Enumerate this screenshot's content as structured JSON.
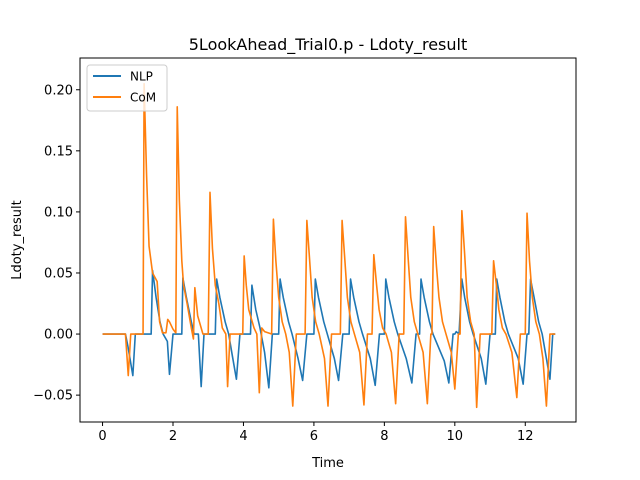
{
  "chart_data": {
    "type": "line",
    "title": "5LookAhead_Trial0.p - Ldoty_result",
    "xlabel": "Time",
    "ylabel": "Ldoty_result",
    "xlim": [
      -0.64,
      13.44
    ],
    "ylim": [
      -0.072,
      0.226
    ],
    "xticks": [
      0,
      2,
      4,
      6,
      8,
      10,
      12
    ],
    "yticks": [
      -0.05,
      0.0,
      0.05,
      0.1,
      0.15,
      0.2
    ],
    "ytick_labels": [
      "−0.05",
      "0.00",
      "0.05",
      "0.10",
      "0.15",
      "0.20"
    ],
    "grid": false,
    "legend_position": "top-left",
    "series": [
      {
        "name": "NLP",
        "color": "#1f77b4",
        "points": [
          [
            0,
            0
          ],
          [
            0.65,
            0
          ],
          [
            0.72,
            -0.01
          ],
          [
            0.86,
            -0.034
          ],
          [
            0.93,
            0
          ],
          [
            1.38,
            0
          ],
          [
            1.42,
            0.052
          ],
          [
            1.52,
            0.03
          ],
          [
            1.63,
            0.01
          ],
          [
            1.72,
            0
          ],
          [
            1.84,
            -0.006
          ],
          [
            1.9,
            -0.033
          ],
          [
            2.0,
            0
          ],
          [
            2.25,
            0
          ],
          [
            2.28,
            0.046
          ],
          [
            2.38,
            0.03
          ],
          [
            2.52,
            0.01
          ],
          [
            2.6,
            0
          ],
          [
            2.72,
            0
          ],
          [
            2.8,
            -0.043
          ],
          [
            2.88,
            0
          ],
          [
            3.2,
            0
          ],
          [
            3.24,
            0.045
          ],
          [
            3.33,
            0.03
          ],
          [
            3.48,
            0.01
          ],
          [
            3.58,
            0
          ],
          [
            3.68,
            -0.017
          ],
          [
            3.8,
            -0.037
          ],
          [
            3.9,
            0
          ],
          [
            4.2,
            0
          ],
          [
            4.24,
            0.04
          ],
          [
            4.35,
            0.02
          ],
          [
            4.47,
            0.005
          ],
          [
            4.6,
            -0.015
          ],
          [
            4.72,
            -0.044
          ],
          [
            4.82,
            0
          ],
          [
            5.0,
            0
          ],
          [
            5.04,
            0.045
          ],
          [
            5.13,
            0.03
          ],
          [
            5.28,
            0.01
          ],
          [
            5.38,
            0
          ],
          [
            5.55,
            -0.02
          ],
          [
            5.68,
            -0.038
          ],
          [
            5.8,
            0
          ],
          [
            6.0,
            0
          ],
          [
            6.04,
            0.045
          ],
          [
            6.13,
            0.03
          ],
          [
            6.28,
            0.01
          ],
          [
            6.38,
            0
          ],
          [
            6.58,
            -0.02
          ],
          [
            6.7,
            -0.038
          ],
          [
            6.82,
            0
          ],
          [
            7.0,
            0
          ],
          [
            7.04,
            0.045
          ],
          [
            7.13,
            0.03
          ],
          [
            7.28,
            0.01
          ],
          [
            7.38,
            0
          ],
          [
            7.6,
            -0.02
          ],
          [
            7.74,
            -0.042
          ],
          [
            7.86,
            0
          ],
          [
            8.0,
            0
          ],
          [
            8.04,
            0.045
          ],
          [
            8.13,
            0.03
          ],
          [
            8.28,
            0.01
          ],
          [
            8.38,
            0
          ],
          [
            8.62,
            -0.02
          ],
          [
            8.78,
            -0.04
          ],
          [
            8.9,
            0
          ],
          [
            9.0,
            0
          ],
          [
            9.04,
            0.045
          ],
          [
            9.13,
            0.03
          ],
          [
            9.28,
            0.01
          ],
          [
            9.38,
            0
          ],
          [
            9.7,
            -0.022
          ],
          [
            9.83,
            -0.04
          ],
          [
            9.95,
            0
          ],
          [
            10.0,
            0
          ],
          [
            10.04,
            0.002
          ],
          [
            10.12,
            0
          ],
          [
            10.2,
            0.045
          ],
          [
            10.28,
            0.03
          ],
          [
            10.42,
            0.01
          ],
          [
            10.52,
            0
          ],
          [
            10.75,
            -0.02
          ],
          [
            10.88,
            -0.041
          ],
          [
            11.0,
            0
          ],
          [
            11.15,
            0
          ],
          [
            11.19,
            0.045
          ],
          [
            11.28,
            0.03
          ],
          [
            11.42,
            0.01
          ],
          [
            11.52,
            0
          ],
          [
            11.8,
            -0.02
          ],
          [
            11.94,
            -0.041
          ],
          [
            12.05,
            0
          ],
          [
            12.1,
            0
          ],
          [
            12.15,
            0.045
          ],
          [
            12.25,
            0.03
          ],
          [
            12.38,
            0.01
          ],
          [
            12.48,
            0
          ],
          [
            12.6,
            -0.02
          ],
          [
            12.7,
            -0.037
          ],
          [
            12.78,
            0
          ],
          [
            12.85,
            0
          ]
        ]
      },
      {
        "name": "CoM",
        "color": "#ff7f0e",
        "points": [
          [
            0,
            0
          ],
          [
            0.65,
            0
          ],
          [
            0.73,
            -0.034
          ],
          [
            0.8,
            0
          ],
          [
            1.15,
            0
          ],
          [
            1.18,
            0.205
          ],
          [
            1.25,
            0.13
          ],
          [
            1.32,
            0.072
          ],
          [
            1.42,
            0.05
          ],
          [
            1.55,
            0.043
          ],
          [
            1.62,
            0.01
          ],
          [
            1.7,
            0.001
          ],
          [
            1.8,
            0.001
          ],
          [
            1.85,
            0.012
          ],
          [
            1.9,
            0.01
          ],
          [
            2.0,
            0.004
          ],
          [
            2.08,
            0.001
          ],
          [
            2.12,
            0.186
          ],
          [
            2.18,
            0.11
          ],
          [
            2.25,
            0.06
          ],
          [
            2.3,
            0.04
          ],
          [
            2.4,
            0.025
          ],
          [
            2.52,
            0.005
          ],
          [
            2.58,
            -0.004
          ],
          [
            2.62,
            0.038
          ],
          [
            2.7,
            0.015
          ],
          [
            2.85,
            0
          ],
          [
            3.0,
            0
          ],
          [
            3.05,
            0.116
          ],
          [
            3.12,
            0.07
          ],
          [
            3.2,
            0.04
          ],
          [
            3.3,
            0.025
          ],
          [
            3.4,
            0.005
          ],
          [
            3.5,
            0
          ],
          [
            3.55,
            -0.043
          ],
          [
            3.62,
            0
          ],
          [
            3.98,
            0
          ],
          [
            4.02,
            0.064
          ],
          [
            4.08,
            0.04
          ],
          [
            4.15,
            0.02
          ],
          [
            4.3,
            0.005
          ],
          [
            4.38,
            0
          ],
          [
            4.45,
            -0.048
          ],
          [
            4.52,
            0.005
          ],
          [
            4.6,
            0.002
          ],
          [
            4.8,
            0
          ],
          [
            4.85,
            0.094
          ],
          [
            4.92,
            0.06
          ],
          [
            5.0,
            0.03
          ],
          [
            5.1,
            0.01
          ],
          [
            5.2,
            0
          ],
          [
            5.3,
            -0.015
          ],
          [
            5.4,
            -0.059
          ],
          [
            5.5,
            0
          ],
          [
            5.75,
            0
          ],
          [
            5.8,
            0.093
          ],
          [
            5.88,
            0.06
          ],
          [
            5.95,
            0.03
          ],
          [
            6.05,
            0.01
          ],
          [
            6.15,
            0
          ],
          [
            6.3,
            -0.02
          ],
          [
            6.4,
            -0.059
          ],
          [
            6.5,
            0
          ],
          [
            6.75,
            0
          ],
          [
            6.8,
            0.093
          ],
          [
            6.88,
            0.06
          ],
          [
            6.95,
            0.03
          ],
          [
            7.05,
            0.01
          ],
          [
            7.15,
            0
          ],
          [
            7.3,
            -0.015
          ],
          [
            7.42,
            -0.058
          ],
          [
            7.52,
            0
          ],
          [
            7.65,
            0
          ],
          [
            7.7,
            0.065
          ],
          [
            7.78,
            0.04
          ],
          [
            7.85,
            0.02
          ],
          [
            7.95,
            0.005
          ],
          [
            8.05,
            0
          ],
          [
            8.2,
            -0.015
          ],
          [
            8.32,
            -0.057
          ],
          [
            8.42,
            0
          ],
          [
            8.55,
            0
          ],
          [
            8.6,
            0.096
          ],
          [
            8.68,
            0.06
          ],
          [
            8.75,
            0.03
          ],
          [
            8.85,
            0.01
          ],
          [
            8.95,
            0
          ],
          [
            9.1,
            -0.015
          ],
          [
            9.22,
            -0.057
          ],
          [
            9.32,
            0
          ],
          [
            9.35,
            0
          ],
          [
            9.4,
            0.088
          ],
          [
            9.48,
            0.055
          ],
          [
            9.55,
            0.03
          ],
          [
            9.65,
            0.01
          ],
          [
            9.75,
            0
          ],
          [
            9.9,
            -0.015
          ],
          [
            10.0,
            -0.045
          ],
          [
            10.1,
            0
          ],
          [
            10.15,
            0
          ],
          [
            10.2,
            0.101
          ],
          [
            10.28,
            0.065
          ],
          [
            10.35,
            0.03
          ],
          [
            10.45,
            0.01
          ],
          [
            10.55,
            0
          ],
          [
            10.62,
            -0.06
          ],
          [
            10.72,
            0
          ],
          [
            11.05,
            0
          ],
          [
            11.1,
            0.06
          ],
          [
            11.18,
            0.04
          ],
          [
            11.25,
            0.02
          ],
          [
            11.35,
            0.005
          ],
          [
            11.45,
            0
          ],
          [
            11.62,
            -0.015
          ],
          [
            11.76,
            -0.052
          ],
          [
            11.86,
            0
          ],
          [
            12.0,
            0
          ],
          [
            12.05,
            0.099
          ],
          [
            12.12,
            0.06
          ],
          [
            12.2,
            0.03
          ],
          [
            12.3,
            0.01
          ],
          [
            12.4,
            0
          ],
          [
            12.5,
            -0.02
          ],
          [
            12.6,
            -0.059
          ],
          [
            12.7,
            0
          ],
          [
            12.85,
            0
          ]
        ]
      }
    ]
  }
}
